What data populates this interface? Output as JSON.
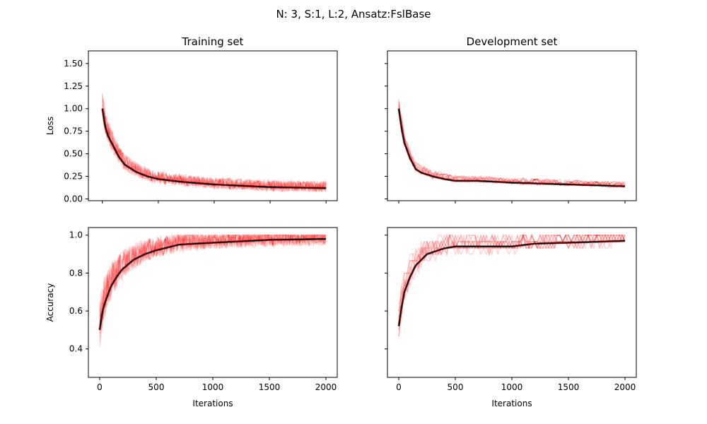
{
  "figure": {
    "suptitle": "N: 3, S:1, L:2, Ansatz:FslBase",
    "colors": {
      "runs": "#ff0000",
      "mean": "#000000",
      "dark": "#8b0000"
    }
  },
  "chart_data": [
    {
      "id": "train-loss",
      "type": "line",
      "title": "Training set",
      "xlabel": "",
      "ylabel": "Loss",
      "xlim": [
        -125,
        2100
      ],
      "ylim": [
        -0.02,
        1.64
      ],
      "xticks": [
        0,
        500,
        1000,
        1500,
        2000
      ],
      "yticks": [
        0.0,
        0.25,
        0.5,
        0.75,
        1.0,
        1.25,
        1.5
      ],
      "ytick_labels": [
        "0.00",
        "0.25",
        "0.50",
        "0.75",
        "1.00",
        "1.25",
        "1.50"
      ],
      "show_xtick_labels": false,
      "show_ytick_labels": true,
      "mean_series": {
        "x": [
          0,
          25,
          50,
          100,
          150,
          200,
          300,
          400,
          500,
          700,
          1000,
          1500,
          2000
        ],
        "y": [
          1.0,
          0.8,
          0.7,
          0.58,
          0.46,
          0.38,
          0.3,
          0.25,
          0.22,
          0.19,
          0.16,
          0.13,
          0.12
        ]
      },
      "runs": {
        "count": 10,
        "noise": 0.06,
        "spread": 0.08,
        "step": 10
      }
    },
    {
      "id": "dev-loss",
      "type": "line",
      "title": "Development set",
      "xlabel": "",
      "ylabel": "",
      "xlim": [
        -100,
        2100
      ],
      "ylim": [
        -0.02,
        1.64
      ],
      "xticks": [
        0,
        500,
        1000,
        1500,
        2000
      ],
      "yticks": [
        0.0,
        0.25,
        0.5,
        0.75,
        1.0,
        1.25,
        1.5
      ],
      "show_xtick_labels": false,
      "show_ytick_labels": false,
      "mean_series": {
        "x": [
          0,
          25,
          50,
          100,
          150,
          200,
          300,
          400,
          500,
          700,
          1000,
          1500,
          2000
        ],
        "y": [
          1.0,
          0.78,
          0.62,
          0.45,
          0.33,
          0.29,
          0.25,
          0.22,
          0.2,
          0.2,
          0.18,
          0.16,
          0.14
        ]
      },
      "runs": {
        "count": 10,
        "noise": 0.035,
        "spread": 0.07,
        "step": 25
      }
    },
    {
      "id": "train-acc",
      "type": "line",
      "title": "",
      "xlabel": "Iterations",
      "ylabel": "Accuracy",
      "xlim": [
        -100,
        2100
      ],
      "ylim": [
        0.25,
        1.04
      ],
      "xticks": [
        0,
        500,
        1000,
        1500,
        2000
      ],
      "yticks": [
        0.4,
        0.6,
        0.8,
        1.0
      ],
      "ytick_labels": [
        "0.4",
        "0.6",
        "0.8",
        "1.0"
      ],
      "show_xtick_labels": true,
      "show_ytick_labels": true,
      "mean_series": {
        "x": [
          0,
          25,
          50,
          100,
          150,
          200,
          300,
          400,
          500,
          700,
          1000,
          1500,
          2000
        ],
        "y": [
          0.5,
          0.6,
          0.65,
          0.73,
          0.78,
          0.82,
          0.87,
          0.9,
          0.92,
          0.95,
          0.96,
          0.975,
          0.98
        ]
      },
      "runs": {
        "count": 10,
        "noise": 0.05,
        "spread": 0.05,
        "step": 10,
        "clip": [
          0.3,
          1.0
        ]
      }
    },
    {
      "id": "dev-acc",
      "type": "line",
      "title": "",
      "xlabel": "Iterations",
      "ylabel": "",
      "xlim": [
        -100,
        2100
      ],
      "ylim": [
        0.25,
        1.04
      ],
      "xticks": [
        0,
        500,
        1000,
        1500,
        2000
      ],
      "yticks": [
        0.4,
        0.6,
        0.8,
        1.0
      ],
      "show_xtick_labels": true,
      "show_ytick_labels": false,
      "mean_series": {
        "x": [
          0,
          25,
          50,
          100,
          150,
          200,
          250,
          300,
          400,
          500,
          700,
          1000,
          1200,
          1500,
          2000
        ],
        "y": [
          0.52,
          0.62,
          0.7,
          0.78,
          0.84,
          0.87,
          0.9,
          0.91,
          0.93,
          0.94,
          0.94,
          0.94,
          0.955,
          0.96,
          0.97
        ]
      },
      "runs": {
        "count": 10,
        "noise": 0.04,
        "spread": 0.04,
        "step": 25,
        "clip": [
          0.28,
          1.0
        ],
        "quantize": 0.0333
      }
    }
  ]
}
